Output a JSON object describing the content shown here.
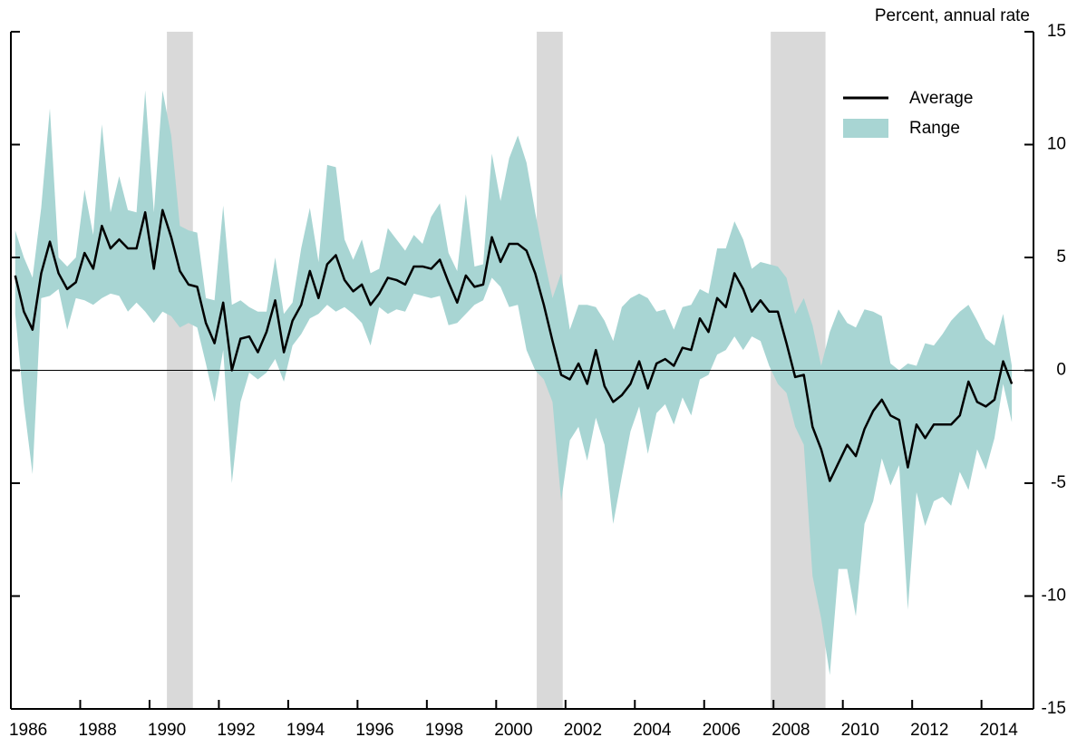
{
  "chart_data": {
    "type": "line",
    "y_axis_label": "Percent, annual rate",
    "xlim": [
      1986,
      2015.5
    ],
    "xticks": [
      1986,
      1988,
      1990,
      1992,
      1994,
      1996,
      1998,
      2000,
      2002,
      2004,
      2006,
      2008,
      2010,
      2012,
      2014
    ],
    "ylim": [
      -15,
      15
    ],
    "yticks": [
      15,
      10,
      5,
      0,
      -5,
      -10,
      -15
    ],
    "recessions": [
      [
        1990.5,
        1991.25
      ],
      [
        2001.17,
        2001.92
      ],
      [
        2007.92,
        2009.5
      ]
    ],
    "recession_color": "#d9d9d9",
    "legend_position": "upper right",
    "x": [
      1986.125,
      1986.375,
      1986.625,
      1986.875,
      1987.125,
      1987.375,
      1987.625,
      1987.875,
      1988.125,
      1988.375,
      1988.625,
      1988.875,
      1989.125,
      1989.375,
      1989.625,
      1989.875,
      1990.125,
      1990.375,
      1990.625,
      1990.875,
      1991.125,
      1991.375,
      1991.625,
      1991.875,
      1992.125,
      1992.375,
      1992.625,
      1992.875,
      1993.125,
      1993.375,
      1993.625,
      1993.875,
      1994.125,
      1994.375,
      1994.625,
      1994.875,
      1995.125,
      1995.375,
      1995.625,
      1995.875,
      1996.125,
      1996.375,
      1996.625,
      1996.875,
      1997.125,
      1997.375,
      1997.625,
      1997.875,
      1998.125,
      1998.375,
      1998.625,
      1998.875,
      1999.125,
      1999.375,
      1999.625,
      1999.875,
      2000.125,
      2000.375,
      2000.625,
      2000.875,
      2001.125,
      2001.375,
      2001.625,
      2001.875,
      2002.125,
      2002.375,
      2002.625,
      2002.875,
      2003.125,
      2003.375,
      2003.625,
      2003.875,
      2004.125,
      2004.375,
      2004.625,
      2004.875,
      2005.125,
      2005.375,
      2005.625,
      2005.875,
      2006.125,
      2006.375,
      2006.625,
      2006.875,
      2007.125,
      2007.375,
      2007.625,
      2007.875,
      2008.125,
      2008.375,
      2008.625,
      2008.875,
      2009.125,
      2009.375,
      2009.625,
      2009.875,
      2010.125,
      2010.375,
      2010.625,
      2010.875,
      2011.125,
      2011.375,
      2011.625,
      2011.875,
      2012.125,
      2012.375,
      2012.625,
      2012.875,
      2013.125,
      2013.375,
      2013.625,
      2013.875,
      2014.125,
      2014.375,
      2014.625,
      2014.875
    ],
    "series": [
      {
        "name": "Average",
        "color": "#000000",
        "values": [
          4.2,
          2.6,
          1.8,
          4.3,
          5.7,
          4.3,
          3.6,
          3.9,
          5.2,
          4.5,
          6.4,
          5.4,
          5.8,
          5.4,
          5.4,
          7.0,
          4.5,
          7.1,
          5.9,
          4.4,
          3.8,
          3.7,
          2.1,
          1.2,
          3.0,
          0.0,
          1.4,
          1.5,
          0.8,
          1.7,
          3.1,
          0.8,
          2.2,
          2.9,
          4.4,
          3.2,
          4.7,
          5.1,
          4.0,
          3.5,
          3.8,
          2.9,
          3.4,
          4.1,
          4.0,
          3.8,
          4.6,
          4.6,
          4.5,
          4.9,
          3.9,
          3.0,
          4.2,
          3.7,
          3.8,
          5.9,
          4.8,
          5.6,
          5.6,
          5.3,
          4.3,
          2.9,
          1.3,
          -0.2,
          -0.4,
          0.3,
          -0.6,
          0.9,
          -0.7,
          -1.4,
          -1.1,
          -0.6,
          0.4,
          -0.8,
          0.3,
          0.5,
          0.2,
          1.0,
          0.9,
          2.3,
          1.7,
          3.2,
          2.8,
          4.3,
          3.6,
          2.6,
          3.1,
          2.6,
          2.6,
          1.2,
          -0.3,
          -0.2,
          -2.5,
          -3.5,
          -4.9,
          -4.1,
          -3.3,
          -3.8,
          -2.6,
          -1.8,
          -1.3,
          -2.0,
          -2.2,
          -4.3,
          -2.4,
          -3.0,
          -2.4,
          -2.4,
          -2.4,
          -2.0,
          -0.5,
          -1.4,
          -1.6,
          -1.3,
          0.4,
          -0.6
        ]
      },
      {
        "name": "Range",
        "color": "#a8d5d3",
        "high": [
          6.2,
          5.0,
          4.1,
          7.2,
          11.6,
          5.0,
          4.6,
          5.0,
          8.0,
          6.0,
          10.9,
          7.0,
          8.6,
          7.1,
          7.0,
          12.4,
          7.0,
          12.4,
          10.4,
          6.4,
          6.2,
          6.1,
          3.2,
          3.1,
          7.3,
          2.9,
          3.1,
          2.8,
          2.6,
          2.6,
          5.0,
          2.5,
          3.0,
          5.4,
          7.2,
          4.8,
          9.1,
          9.0,
          5.8,
          4.9,
          5.8,
          4.3,
          4.5,
          6.3,
          5.8,
          5.3,
          6.0,
          5.6,
          6.8,
          7.4,
          5.2,
          4.4,
          7.8,
          4.6,
          4.7,
          9.6,
          7.5,
          9.4,
          10.4,
          9.2,
          7.0,
          5.0,
          3.2,
          4.3,
          1.8,
          2.9,
          2.9,
          2.8,
          2.2,
          1.3,
          2.8,
          3.2,
          3.4,
          3.2,
          2.6,
          2.7,
          1.8,
          2.8,
          2.9,
          3.6,
          3.4,
          5.4,
          5.4,
          6.6,
          5.8,
          4.5,
          4.8,
          4.7,
          4.6,
          4.1,
          2.5,
          3.2,
          2.0,
          0.2,
          1.7,
          2.7,
          2.1,
          1.9,
          2.7,
          2.6,
          2.4,
          0.3,
          0.0,
          0.3,
          0.2,
          1.2,
          1.1,
          1.6,
          2.2,
          2.6,
          2.9,
          2.2,
          1.4,
          1.1,
          2.5,
          0.2
        ],
        "low": [
          2.5,
          -1.5,
          -4.6,
          3.2,
          3.3,
          3.6,
          1.8,
          3.2,
          3.1,
          2.9,
          3.2,
          3.4,
          3.3,
          2.6,
          3.0,
          2.6,
          2.1,
          2.6,
          2.4,
          1.9,
          2.1,
          1.9,
          0.3,
          -1.4,
          0.9,
          -5.0,
          -1.4,
          -0.1,
          -0.4,
          -0.1,
          0.5,
          -0.5,
          1.1,
          1.6,
          2.3,
          2.5,
          2.9,
          2.6,
          2.8,
          2.5,
          2.1,
          1.1,
          2.8,
          2.5,
          2.7,
          2.6,
          3.4,
          3.3,
          3.2,
          3.3,
          2.0,
          2.1,
          2.5,
          2.9,
          3.1,
          4.1,
          3.7,
          2.8,
          2.9,
          0.9,
          0.0,
          -0.4,
          -1.4,
          -5.8,
          -3.1,
          -2.5,
          -4.0,
          -2.1,
          -3.3,
          -6.8,
          -4.7,
          -2.7,
          -1.6,
          -3.7,
          -1.9,
          -1.5,
          -2.4,
          -1.2,
          -2.0,
          -0.4,
          -0.2,
          0.7,
          0.9,
          1.5,
          0.9,
          1.5,
          1.3,
          0.2,
          -0.6,
          -1.0,
          -2.5,
          -3.3,
          -9.1,
          -11.0,
          -13.5,
          -8.8,
          -8.8,
          -10.9,
          -6.8,
          -5.8,
          -3.9,
          -5.1,
          -4.2,
          -10.6,
          -5.4,
          -6.9,
          -5.8,
          -5.6,
          -6.0,
          -4.5,
          -5.3,
          -3.5,
          -4.4,
          -3.0,
          -0.6,
          -2.3
        ]
      }
    ]
  }
}
